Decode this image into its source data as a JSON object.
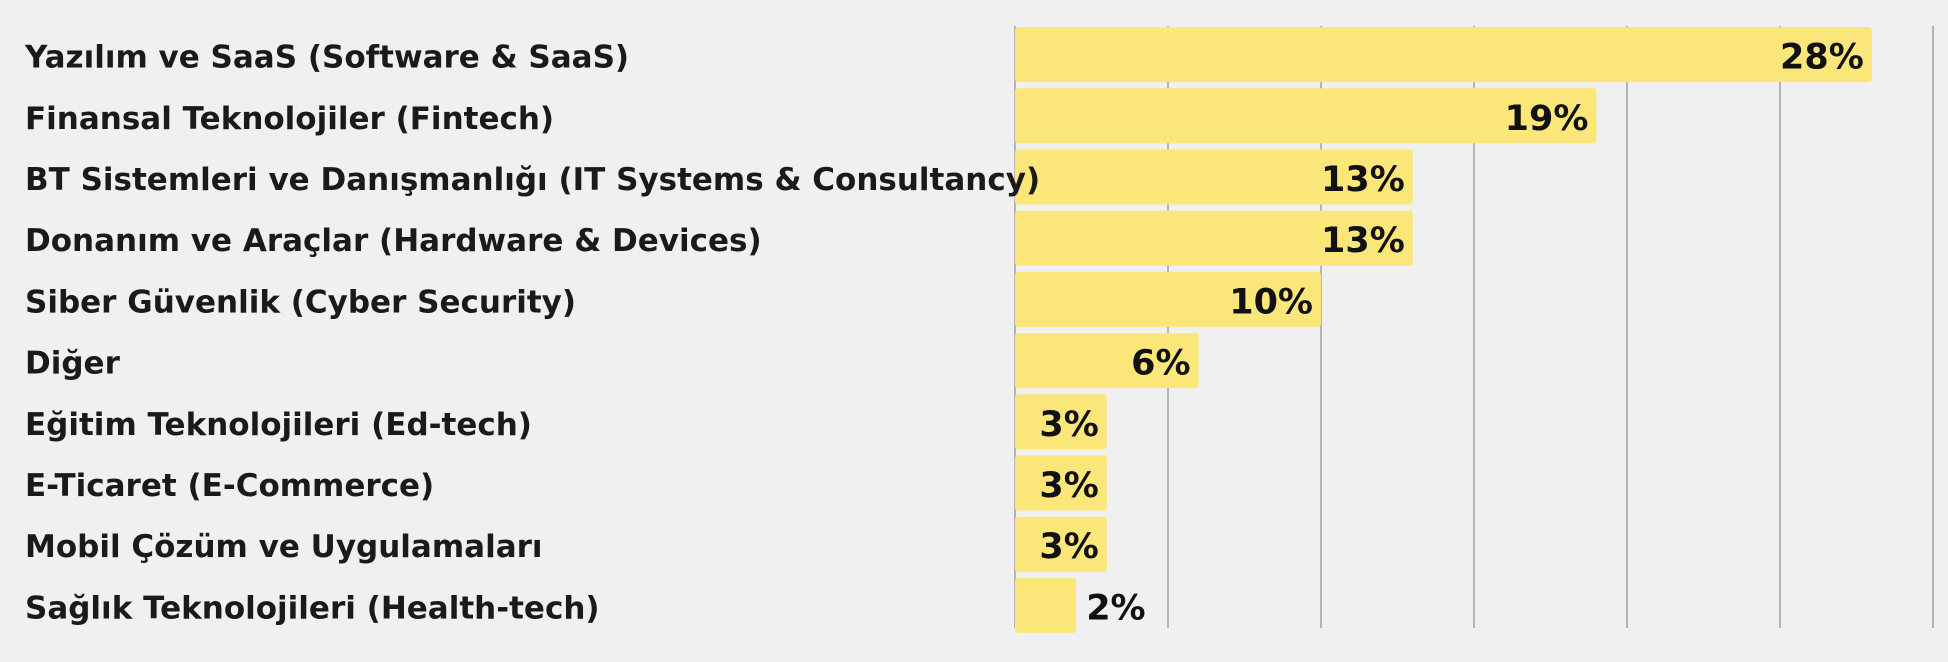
{
  "chart_data": {
    "type": "bar",
    "orientation": "horizontal",
    "categories": [
      "Yazılım ve SaaS (Software & SaaS)",
      "Finansal Teknolojiler (Fintech)",
      "BT Sistemleri ve Danışmanlığı (IT Systems & Consultancy)",
      "Donanım ve Araçlar (Hardware & Devices)",
      "Siber Güvenlik (Cyber Security)",
      "Diğer",
      "Eğitim Teknolojileri (Ed-tech)",
      "E-Ticaret (E-Commerce)",
      "Mobil Çözüm ve Uygulamaları",
      "Sağlık Teknolojileri (Health-tech)"
    ],
    "values": [
      28,
      19,
      13,
      13,
      10,
      6,
      3,
      3,
      3,
      2
    ],
    "value_labels": [
      "28%",
      "19%",
      "13%",
      "13%",
      "10%",
      "6%",
      "3%",
      "3%",
      "3%",
      "2%"
    ],
    "xlim": [
      0,
      30
    ],
    "grid_ticks": [
      0,
      5,
      10,
      15,
      20,
      25,
      30
    ],
    "grid": true,
    "title": "",
    "xlabel": "",
    "ylabel": "",
    "colors": {
      "bar": "#fbe67a",
      "grid": "#b5b5b5",
      "background": "#f0f0f0",
      "text": "#1a1a1a"
    }
  }
}
